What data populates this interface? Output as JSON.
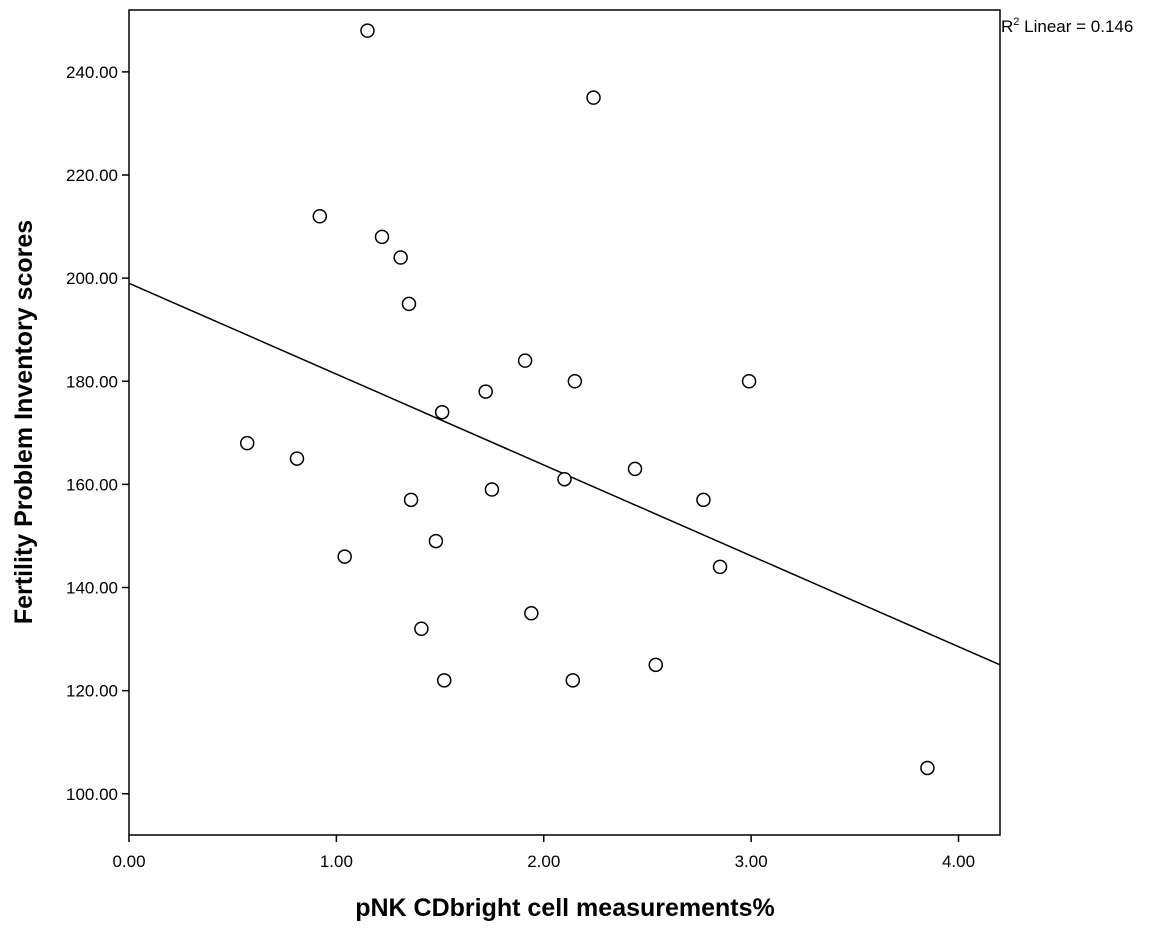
{
  "chart_data": {
    "type": "scatter",
    "xlabel": "pNK CDbright cell measurements%",
    "ylabel": "Fertility Problem Inventory scores",
    "xlim": [
      0,
      4.2
    ],
    "ylim": [
      92,
      252
    ],
    "x_ticks": [
      "0.00",
      "1.00",
      "2.00",
      "3.00",
      "4.00"
    ],
    "y_ticks": [
      "100.00",
      "120.00",
      "140.00",
      "160.00",
      "180.00",
      "200.00",
      "220.00",
      "240.00"
    ],
    "x_tick_values": [
      0,
      1,
      2,
      3,
      4
    ],
    "y_tick_values": [
      100,
      120,
      140,
      160,
      180,
      200,
      220,
      240
    ],
    "points": [
      {
        "x": 1.15,
        "y": 248
      },
      {
        "x": 2.24,
        "y": 235
      },
      {
        "x": 0.92,
        "y": 212
      },
      {
        "x": 1.22,
        "y": 208
      },
      {
        "x": 1.31,
        "y": 204
      },
      {
        "x": 1.35,
        "y": 195
      },
      {
        "x": 1.91,
        "y": 184
      },
      {
        "x": 2.15,
        "y": 180
      },
      {
        "x": 2.99,
        "y": 180
      },
      {
        "x": 1.72,
        "y": 178
      },
      {
        "x": 1.51,
        "y": 174
      },
      {
        "x": 0.57,
        "y": 168
      },
      {
        "x": 0.81,
        "y": 165
      },
      {
        "x": 2.44,
        "y": 163
      },
      {
        "x": 2.1,
        "y": 161
      },
      {
        "x": 1.75,
        "y": 159
      },
      {
        "x": 1.36,
        "y": 157
      },
      {
        "x": 2.77,
        "y": 157
      },
      {
        "x": 1.48,
        "y": 149
      },
      {
        "x": 1.04,
        "y": 146
      },
      {
        "x": 2.85,
        "y": 144
      },
      {
        "x": 1.94,
        "y": 135
      },
      {
        "x": 1.41,
        "y": 132
      },
      {
        "x": 2.54,
        "y": 125
      },
      {
        "x": 1.52,
        "y": 122
      },
      {
        "x": 2.14,
        "y": 122
      },
      {
        "x": 3.85,
        "y": 105
      }
    ],
    "fit_line": {
      "x": [
        0,
        4.2
      ],
      "y": [
        199,
        125
      ]
    },
    "fit_label": {
      "r": "R",
      "sup": "2",
      "text": " Linear = 0.146"
    },
    "grid": false,
    "legend": "none"
  }
}
